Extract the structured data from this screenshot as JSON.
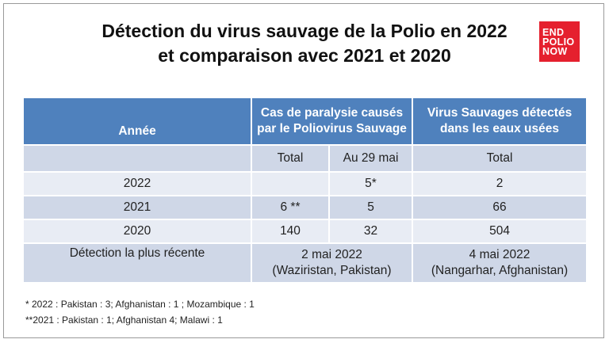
{
  "title": {
    "line1": "Détection du virus sauvage de la Polio en 2022",
    "line2": "et comparaison avec 2021 et 2020"
  },
  "logo": {
    "line1": "END",
    "line2": "POLIO",
    "line3": "NOW"
  },
  "table": {
    "headers": {
      "annee": "Année",
      "cas_line1": "Cas de paralysie causés",
      "cas_line2": "par le Poliovirus Sauvage",
      "virus_line1": "Virus  Sauvages détectés",
      "virus_line2": "dans les eaux usées"
    },
    "subheaders": {
      "annee": "",
      "total": "Total",
      "au_29_mai": "Au 29 mai",
      "total_eaux": "Total"
    },
    "rows": [
      {
        "year": "2022",
        "total": "",
        "au_29_mai": "5*",
        "eaux": "2"
      },
      {
        "year": "2021",
        "total": "6 **",
        "au_29_mai": "5",
        "eaux": "66"
      },
      {
        "year": "2020",
        "total": "140",
        "au_29_mai": "32",
        "eaux": "504"
      }
    ],
    "recent": {
      "label": "Détection la plus récente",
      "cas_date": "2 mai 2022",
      "cas_place": "(Waziristan, Pakistan)",
      "eaux_date": "4 mai 2022",
      "eaux_place": "(Nangarhar, Afghanistan)"
    }
  },
  "footnotes": {
    "note1": "* 2022 : Pakistan : 3; Afghanistan : 1 ; Mozambique : 1",
    "note2": "**2021 : Pakistan : 1; Afghanistan 4; Malawi : 1"
  },
  "colors": {
    "header_blue": "#4f81bd",
    "row_dark": "#cfd7e7",
    "row_light": "#e8ecf4",
    "logo_red": "#e5202e"
  }
}
